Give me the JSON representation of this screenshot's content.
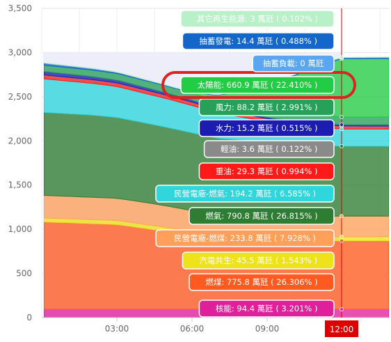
{
  "chart_data": {
    "type": "area",
    "stacked": true,
    "x_ticks": [
      "03:00",
      "06:00",
      "09:00"
    ],
    "current_time_label": "12:00",
    "y_ticks": [
      0,
      500,
      1000,
      1500,
      2000,
      2500,
      3000,
      3500
    ],
    "ylim": [
      0,
      3500
    ],
    "unit": "萬瓩",
    "grid": true,
    "series": [
      {
        "name": "核能",
        "value": 94.4,
        "percent": "3.201%",
        "color": "#e0209a",
        "label": "核能: 94.4 萬瓩 ( 3.201% )"
      },
      {
        "name": "燃煤",
        "value": 775.8,
        "percent": "26.306%",
        "color": "#ff5a1f",
        "label": "燃煤: 775.8 萬瓩 ( 26.306% )"
      },
      {
        "name": "汽電共生",
        "value": 45.5,
        "percent": "1.543%",
        "color": "#ede21c",
        "label": "汽電共生: 45.5 萬瓩 ( 1.543% )"
      },
      {
        "name": "民營電廠-燃煤",
        "value": 233.8,
        "percent": "7.928%",
        "color": "#ffa05a",
        "label": "民營電廠-燃煤: 233.8 萬瓩 ( 7.928% )"
      },
      {
        "name": "燃氣",
        "value": 790.8,
        "percent": "26.815%",
        "color": "#2e7d32",
        "label": "燃氣: 790.8 萬瓩 ( 26.815% )"
      },
      {
        "name": "民營電廠-燃氣",
        "value": 194.2,
        "percent": "6.585%",
        "color": "#2fd6dc",
        "label": "民營電廠-燃氣: 194.2 萬瓩 ( 6.585% )"
      },
      {
        "name": "重油",
        "value": 29.3,
        "percent": "0.994%",
        "color": "#ff1a1a",
        "label": "重油: 29.3 萬瓩 ( 0.994% )"
      },
      {
        "name": "輕油",
        "value": 3.6,
        "percent": "0.122%",
        "color": "#8a8a8a",
        "label": "輕油: 3.6 萬瓩 ( 0.122% )"
      },
      {
        "name": "水力",
        "value": 15.2,
        "percent": "0.515%",
        "color": "#1c1cb0",
        "label": "水力: 15.2 萬瓩 ( 0.515% )"
      },
      {
        "name": "風力",
        "value": 88.2,
        "percent": "2.991%",
        "color": "#27a05a",
        "label": "風力: 88.2 萬瓩 ( 2.991% )"
      },
      {
        "name": "太陽能",
        "value": 660.9,
        "percent": "22.410%",
        "color": "#22cc44",
        "label": "太陽能: 660.9 萬瓩 ( 22.410% )"
      },
      {
        "name": "抽蓄負載",
        "value": 0,
        "percent": "",
        "color": "#5aa6f0",
        "label": "抽蓄負載: 0 萬瓩"
      },
      {
        "name": "抽蓄發電",
        "value": 14.4,
        "percent": "0.488%",
        "color": "#1466c8",
        "label": "抽蓄發電: 14.4 萬瓩 ( 0.488% )"
      },
      {
        "name": "其它再生能源",
        "value": 3,
        "percent": "0.102%",
        "color": "#b8f0c8",
        "label": "其它再生能源: 3 萬瓩 ( 0.102% )"
      }
    ]
  }
}
